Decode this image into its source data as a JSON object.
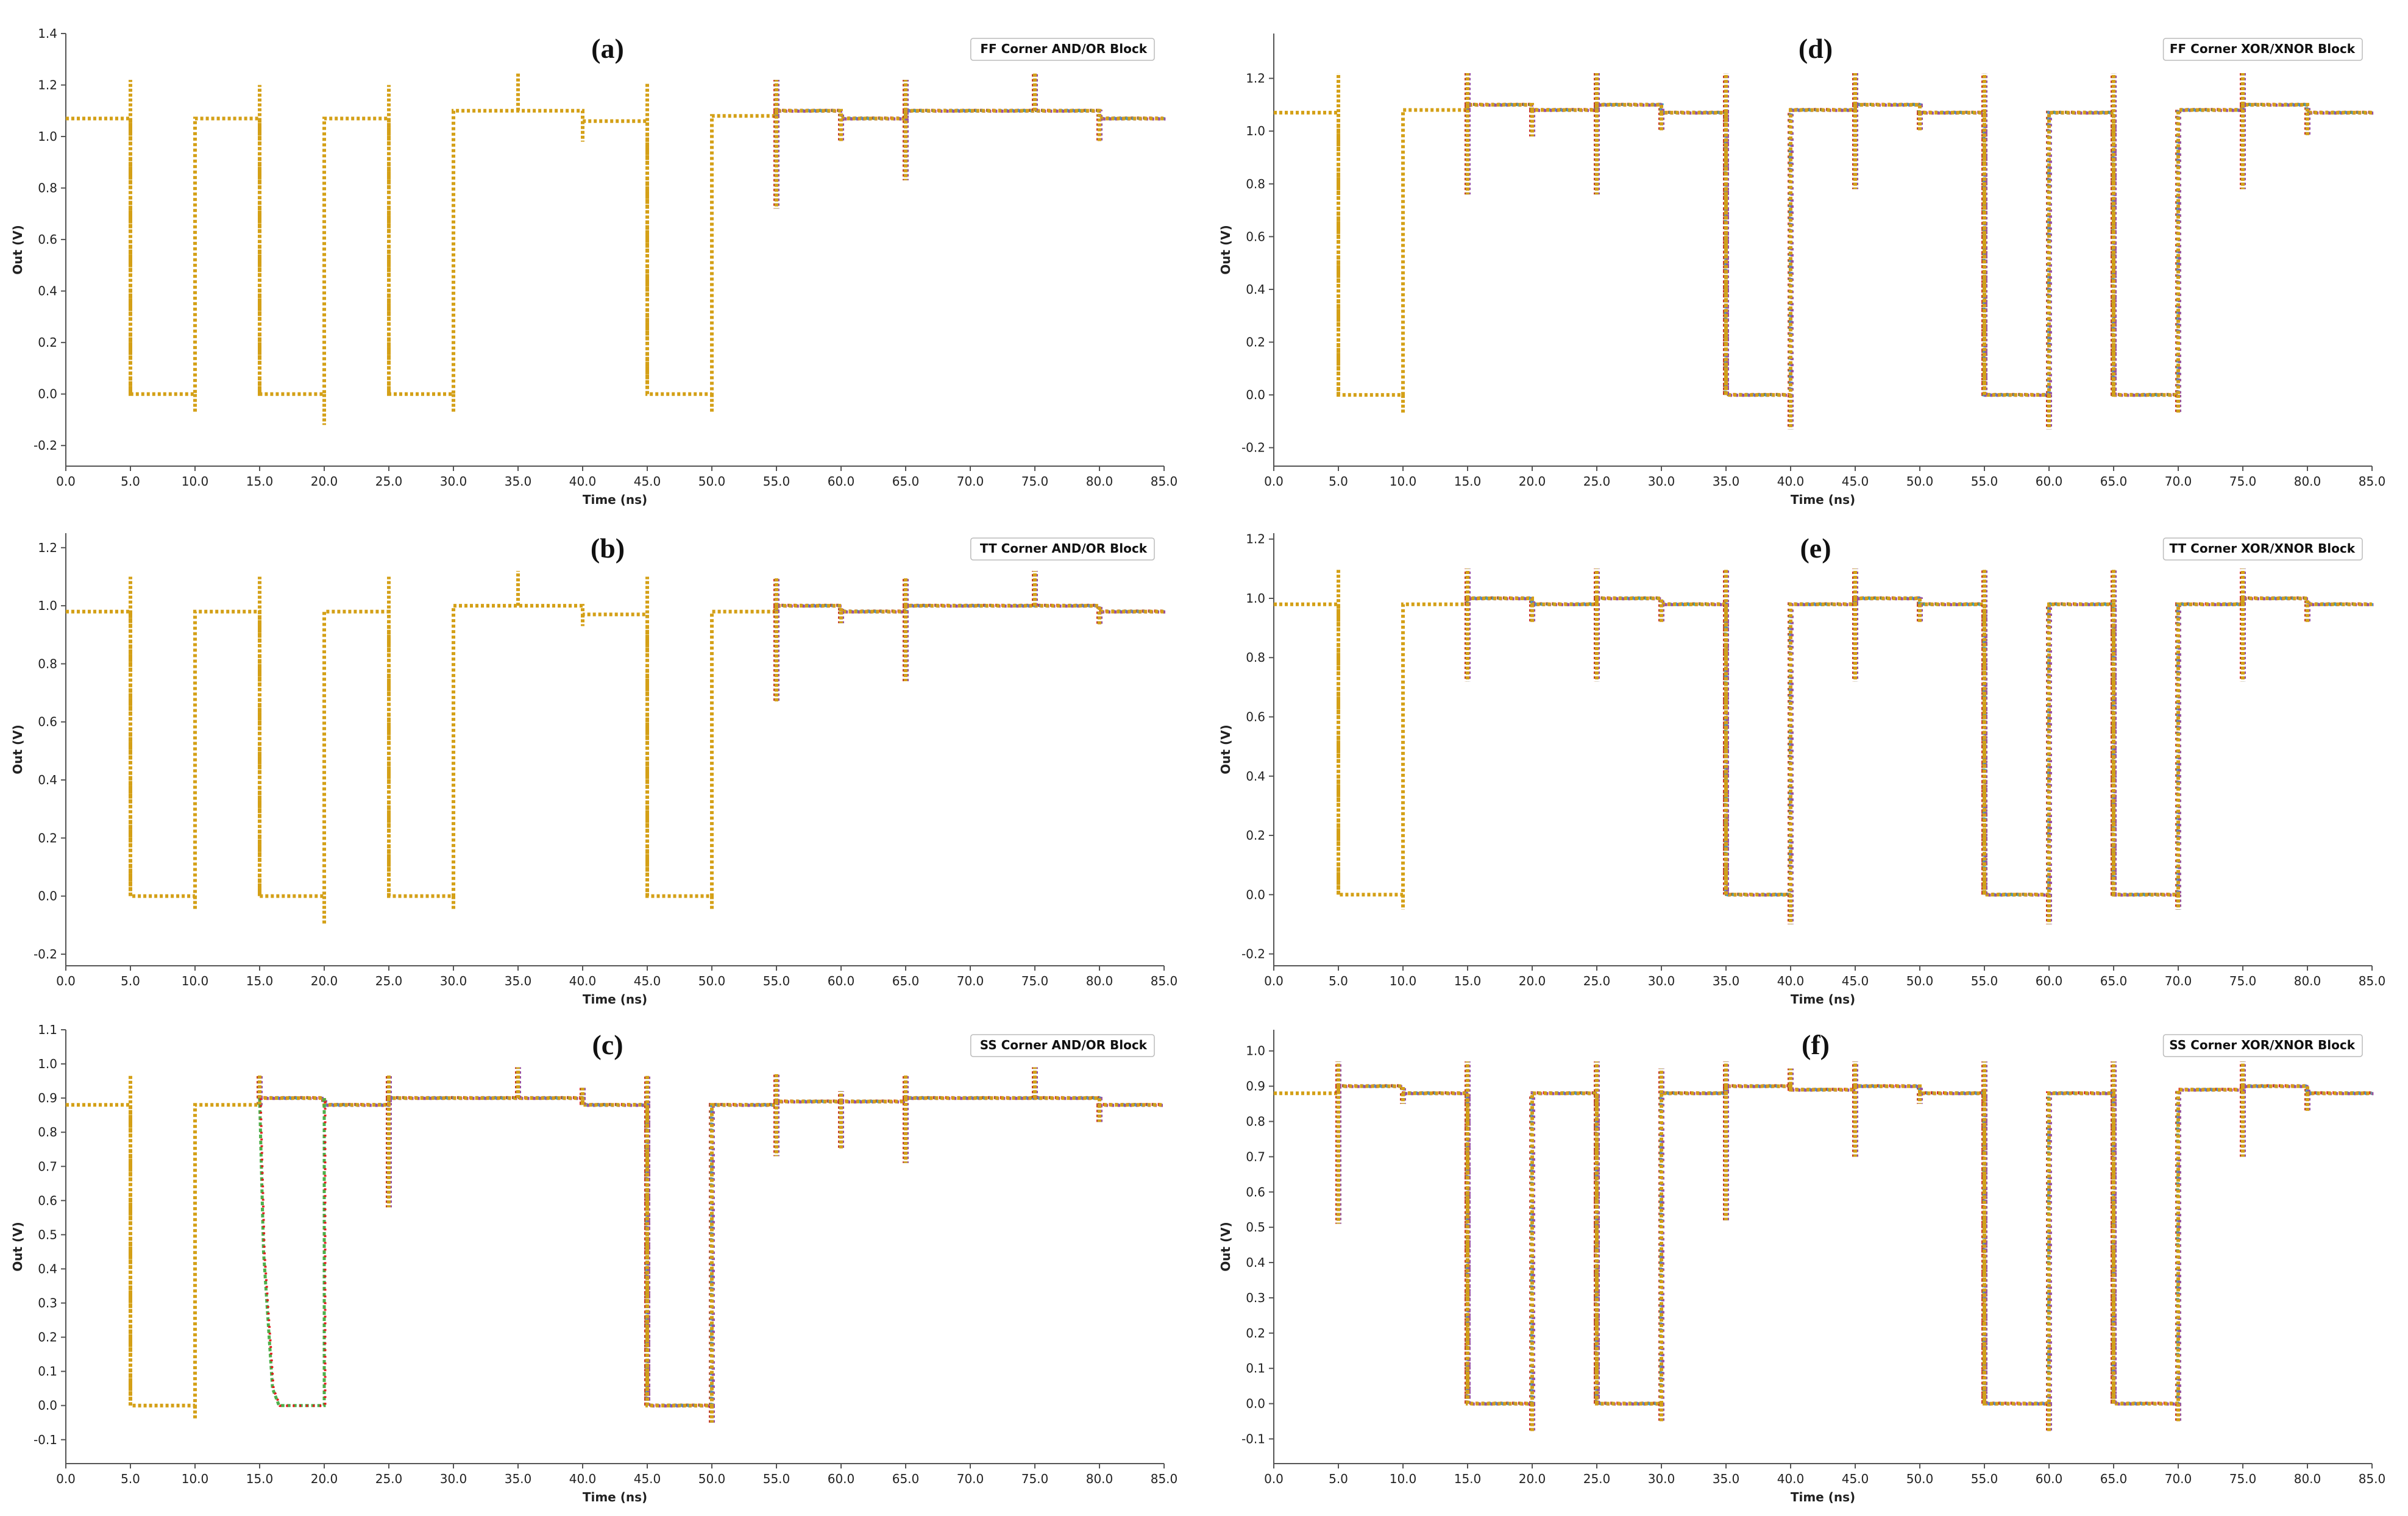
{
  "colors": {
    "axis": "#555555",
    "trace_primary": "#d4a017",
    "trace_accents": [
      "#e41a1c",
      "#4daf4a",
      "#9467bd",
      "#17becf",
      "#984ea3"
    ]
  },
  "chart_data": [
    {
      "id": "a",
      "type": "line",
      "panel_label": "(a)",
      "legend": "FF Corner AND/OR Block",
      "xlabel": "Time (ns)",
      "ylabel": "Out (V)",
      "xlim": [
        0,
        85
      ],
      "ylim": [
        -0.28,
        1.4
      ],
      "xticks": [
        "0.0",
        "5.0",
        "10.0",
        "15.0",
        "20.0",
        "25.0",
        "30.0",
        "35.0",
        "40.0",
        "45.0",
        "50.0",
        "55.0",
        "60.0",
        "65.0",
        "70.0",
        "75.0",
        "80.0",
        "85.0"
      ],
      "yticks": [
        "-0.2",
        "0.0",
        "0.2",
        "0.4",
        "0.6",
        "0.8",
        "1.0",
        "1.2",
        "1.4"
      ],
      "x": [
        0,
        5,
        5,
        10,
        10,
        15,
        15,
        20,
        20,
        25,
        25,
        30,
        30,
        35,
        35,
        40,
        40,
        45,
        45,
        50,
        50,
        55,
        55,
        60,
        60,
        65,
        65,
        70,
        70,
        75,
        75,
        80,
        80,
        85
      ],
      "y": [
        1.07,
        1.07,
        0,
        0,
        1.07,
        1.07,
        0,
        0,
        1.07,
        1.07,
        0,
        0,
        1.1,
        1.1,
        1.1,
        1.1,
        1.06,
        1.06,
        0,
        0,
        1.08,
        1.08,
        1.1,
        1.1,
        1.07,
        1.07,
        1.1,
        1.1,
        1.1,
        1.1,
        1.1,
        1.1,
        1.07,
        1.07
      ],
      "spikes": [
        [
          5,
          1.22
        ],
        [
          15,
          1.2
        ],
        [
          25,
          1.2
        ],
        [
          35,
          1.25
        ],
        [
          40,
          0.98
        ],
        [
          45,
          1.21
        ],
        [
          55,
          0.72
        ],
        [
          55,
          1.22
        ],
        [
          60,
          0.98
        ],
        [
          65,
          0.83
        ],
        [
          65,
          1.22
        ],
        [
          75,
          1.25
        ],
        [
          80,
          0.98
        ],
        [
          10,
          -0.07
        ],
        [
          20,
          -0.12
        ],
        [
          30,
          -0.07
        ],
        [
          50,
          -0.07
        ]
      ],
      "accent_start": 55
    },
    {
      "id": "b",
      "type": "line",
      "panel_label": "(b)",
      "legend": "TT Corner AND/OR Block",
      "xlabel": "Time (ns)",
      "ylabel": "Out (V)",
      "xlim": [
        0,
        85
      ],
      "ylim": [
        -0.24,
        1.25
      ],
      "xticks": [
        "0.0",
        "5.0",
        "10.0",
        "15.0",
        "20.0",
        "25.0",
        "30.0",
        "35.0",
        "40.0",
        "45.0",
        "50.0",
        "55.0",
        "60.0",
        "65.0",
        "70.0",
        "75.0",
        "80.0",
        "85.0"
      ],
      "yticks": [
        "-0.2",
        "0.0",
        "0.2",
        "0.4",
        "0.6",
        "0.8",
        "1.0",
        "1.2"
      ],
      "x": [
        0,
        5,
        5,
        10,
        10,
        15,
        15,
        20,
        20,
        25,
        25,
        30,
        30,
        35,
        35,
        40,
        40,
        45,
        45,
        50,
        50,
        55,
        55,
        60,
        60,
        65,
        65,
        70,
        70,
        75,
        75,
        80,
        80,
        85
      ],
      "y": [
        0.98,
        0.98,
        0,
        0,
        0.98,
        0.98,
        0,
        0,
        0.98,
        0.98,
        0,
        0,
        1.0,
        1.0,
        1.0,
        1.0,
        0.97,
        0.97,
        0,
        0,
        0.98,
        0.98,
        1.0,
        1.0,
        0.98,
        0.98,
        1.0,
        1.0,
        1.0,
        1.0,
        1.0,
        1.0,
        0.98,
        0.98
      ],
      "spikes": [
        [
          5,
          1.1
        ],
        [
          15,
          1.1
        ],
        [
          25,
          1.1
        ],
        [
          35,
          1.12
        ],
        [
          40,
          0.93
        ],
        [
          45,
          1.1
        ],
        [
          55,
          0.67
        ],
        [
          55,
          1.1
        ],
        [
          60,
          0.94
        ],
        [
          65,
          0.74
        ],
        [
          65,
          1.1
        ],
        [
          75,
          1.12
        ],
        [
          80,
          0.93
        ],
        [
          10,
          -0.05
        ],
        [
          20,
          -0.1
        ],
        [
          30,
          -0.05
        ],
        [
          50,
          -0.05
        ]
      ],
      "accent_start": 55
    },
    {
      "id": "c",
      "type": "line",
      "panel_label": "(c)",
      "legend": "SS Corner AND/OR Block",
      "xlabel": "Time (ns)",
      "ylabel": "Out (V)",
      "xlim": [
        0,
        85
      ],
      "ylim": [
        -0.17,
        1.1
      ],
      "xticks": [
        "0.0",
        "5.0",
        "10.0",
        "15.0",
        "20.0",
        "25.0",
        "30.0",
        "35.0",
        "40.0",
        "45.0",
        "50.0",
        "55.0",
        "60.0",
        "65.0",
        "70.0",
        "75.0",
        "80.0",
        "85.0"
      ],
      "yticks": [
        "-0.1",
        "0.0",
        "0.1",
        "0.2",
        "0.3",
        "0.4",
        "0.5",
        "0.6",
        "0.7",
        "0.8",
        "0.9",
        "1.0",
        "1.1"
      ],
      "x": [
        0,
        5,
        5,
        10,
        10,
        15,
        15,
        20,
        20,
        25,
        25,
        30,
        30,
        35,
        35,
        40,
        40,
        45,
        45,
        50,
        50,
        55,
        55,
        60,
        60,
        65,
        65,
        70,
        70,
        75,
        75,
        80,
        80,
        85
      ],
      "y": [
        0.88,
        0.88,
        0,
        0,
        0.88,
        0.88,
        0.9,
        0.9,
        0.88,
        0.88,
        0.9,
        0.9,
        0.9,
        0.9,
        0.9,
        0.9,
        0.88,
        0.88,
        0,
        0,
        0.88,
        0.88,
        0.89,
        0.89,
        0.89,
        0.89,
        0.9,
        0.9,
        0.9,
        0.9,
        0.9,
        0.9,
        0.88,
        0.88
      ],
      "spikes": [
        [
          5,
          0.97
        ],
        [
          15,
          0.97
        ],
        [
          25,
          0.97
        ],
        [
          25,
          0.58
        ],
        [
          35,
          0.99
        ],
        [
          40,
          0.93
        ],
        [
          45,
          0.97
        ],
        [
          55,
          0.97
        ],
        [
          55,
          0.73
        ],
        [
          60,
          0.92
        ],
        [
          60,
          0.75
        ],
        [
          65,
          0.97
        ],
        [
          65,
          0.71
        ],
        [
          75,
          0.99
        ],
        [
          80,
          0.83
        ],
        [
          10,
          -0.04
        ],
        [
          50,
          -0.05
        ]
      ],
      "fall_series": [
        [
          15,
          0.9
        ],
        [
          15.3,
          0.45
        ],
        [
          16,
          0.05
        ],
        [
          16.5,
          0
        ],
        [
          20,
          0
        ],
        [
          20,
          0.9
        ]
      ],
      "accent_start": 15
    },
    {
      "id": "d",
      "type": "line",
      "panel_label": "(d)",
      "legend": "FF Corner XOR/XNOR Block",
      "xlabel": "Time (ns)",
      "ylabel": "Out (V)",
      "xlim": [
        0,
        85
      ],
      "ylim": [
        -0.27,
        1.37
      ],
      "xticks": [
        "0.0",
        "5.0",
        "10.0",
        "15.0",
        "20.0",
        "25.0",
        "30.0",
        "35.0",
        "40.0",
        "45.0",
        "50.0",
        "55.0",
        "60.0",
        "65.0",
        "70.0",
        "75.0",
        "80.0",
        "85.0"
      ],
      "yticks": [
        "-0.2",
        "0.0",
        "0.2",
        "0.4",
        "0.6",
        "0.8",
        "1.0",
        "1.2"
      ],
      "x": [
        0,
        5,
        5,
        10,
        10,
        15,
        15,
        20,
        20,
        25,
        25,
        30,
        30,
        35,
        35,
        40,
        40,
        45,
        45,
        50,
        50,
        55,
        55,
        60,
        60,
        65,
        65,
        70,
        70,
        75,
        75,
        80,
        80,
        85
      ],
      "y": [
        1.07,
        1.07,
        0,
        0,
        1.08,
        1.08,
        1.1,
        1.1,
        1.08,
        1.08,
        1.1,
        1.1,
        1.07,
        1.07,
        0,
        0,
        1.08,
        1.08,
        1.1,
        1.1,
        1.07,
        1.07,
        0,
        0,
        1.07,
        1.07,
        0,
        0,
        1.08,
        1.08,
        1.1,
        1.1,
        1.07,
        1.07
      ],
      "spikes": [
        [
          5,
          1.22
        ],
        [
          15,
          1.22
        ],
        [
          15,
          0.76
        ],
        [
          20,
          0.98
        ],
        [
          25,
          1.22
        ],
        [
          25,
          0.76
        ],
        [
          30,
          1.0
        ],
        [
          35,
          1.22
        ],
        [
          45,
          1.22
        ],
        [
          45,
          0.78
        ],
        [
          50,
          1.0
        ],
        [
          55,
          1.22
        ],
        [
          65,
          1.22
        ],
        [
          75,
          1.22
        ],
        [
          75,
          0.78
        ],
        [
          80,
          0.98
        ],
        [
          10,
          -0.07
        ],
        [
          40,
          -0.13
        ],
        [
          60,
          -0.13
        ],
        [
          70,
          -0.07
        ]
      ],
      "accent_start": 15
    },
    {
      "id": "e",
      "type": "line",
      "panel_label": "(e)",
      "legend": "TT Corner XOR/XNOR Block",
      "xlabel": "Time (ns)",
      "ylabel": "Out (V)",
      "xlim": [
        0,
        85
      ],
      "ylim": [
        -0.24,
        1.22
      ],
      "xticks": [
        "0.0",
        "5.0",
        "10.0",
        "15.0",
        "20.0",
        "25.0",
        "30.0",
        "35.0",
        "40.0",
        "45.0",
        "50.0",
        "55.0",
        "60.0",
        "65.0",
        "70.0",
        "75.0",
        "80.0",
        "85.0"
      ],
      "yticks": [
        "-0.2",
        "0.0",
        "0.2",
        "0.4",
        "0.6",
        "0.8",
        "1.0",
        "1.2"
      ],
      "x": [
        0,
        5,
        5,
        10,
        10,
        15,
        15,
        20,
        20,
        25,
        25,
        30,
        30,
        35,
        35,
        40,
        40,
        45,
        45,
        50,
        50,
        55,
        55,
        60,
        60,
        65,
        65,
        70,
        70,
        75,
        75,
        80,
        80,
        85
      ],
      "y": [
        0.98,
        0.98,
        0,
        0,
        0.98,
        0.98,
        1.0,
        1.0,
        0.98,
        0.98,
        1.0,
        1.0,
        0.98,
        0.98,
        0,
        0,
        0.98,
        0.98,
        1.0,
        1.0,
        0.98,
        0.98,
        0,
        0,
        0.98,
        0.98,
        0,
        0,
        0.98,
        0.98,
        1.0,
        1.0,
        0.98,
        0.98
      ],
      "spikes": [
        [
          5,
          1.1
        ],
        [
          15,
          1.1
        ],
        [
          15,
          0.72
        ],
        [
          20,
          0.92
        ],
        [
          25,
          1.1
        ],
        [
          25,
          0.72
        ],
        [
          30,
          0.92
        ],
        [
          35,
          1.1
        ],
        [
          45,
          1.1
        ],
        [
          45,
          0.72
        ],
        [
          50,
          0.92
        ],
        [
          55,
          1.1
        ],
        [
          65,
          1.1
        ],
        [
          75,
          1.1
        ],
        [
          75,
          0.72
        ],
        [
          80,
          0.92
        ],
        [
          10,
          -0.05
        ],
        [
          40,
          -0.1
        ],
        [
          60,
          -0.1
        ],
        [
          70,
          -0.05
        ]
      ],
      "accent_start": 15
    },
    {
      "id": "f",
      "type": "line",
      "panel_label": "(f)",
      "legend": "SS Corner XOR/XNOR Block",
      "xlabel": "Time (ns)",
      "ylabel": "Out (V)",
      "xlim": [
        0,
        85
      ],
      "ylim": [
        -0.17,
        1.06
      ],
      "xticks": [
        "0.0",
        "5.0",
        "10.0",
        "15.0",
        "20.0",
        "25.0",
        "30.0",
        "35.0",
        "40.0",
        "45.0",
        "50.0",
        "55.0",
        "60.0",
        "65.0",
        "70.0",
        "75.0",
        "80.0",
        "85.0"
      ],
      "yticks": [
        "-0.1",
        "0.0",
        "0.1",
        "0.2",
        "0.3",
        "0.4",
        "0.5",
        "0.6",
        "0.7",
        "0.8",
        "0.9",
        "1.0"
      ],
      "x": [
        0,
        5,
        5,
        10,
        10,
        15,
        15,
        20,
        20,
        25,
        25,
        30,
        30,
        35,
        35,
        40,
        40,
        45,
        45,
        50,
        50,
        55,
        55,
        60,
        60,
        65,
        65,
        70,
        70,
        75,
        75,
        80,
        80,
        85
      ],
      "y": [
        0.88,
        0.88,
        0.9,
        0.9,
        0.88,
        0.88,
        0,
        0,
        0.88,
        0.88,
        0,
        0,
        0.88,
        0.88,
        0.9,
        0.9,
        0.89,
        0.89,
        0.9,
        0.9,
        0.88,
        0.88,
        0,
        0,
        0.88,
        0.88,
        0,
        0,
        0.89,
        0.89,
        0.9,
        0.9,
        0.88,
        0.88
      ],
      "spikes": [
        [
          5,
          0.97
        ],
        [
          5,
          0.51
        ],
        [
          10,
          0.85
        ],
        [
          15,
          0.97
        ],
        [
          25,
          0.97
        ],
        [
          30,
          0.95
        ],
        [
          35,
          0.97
        ],
        [
          35,
          0.52
        ],
        [
          40,
          0.95
        ],
        [
          45,
          0.97
        ],
        [
          45,
          0.7
        ],
        [
          50,
          0.85
        ],
        [
          55,
          0.97
        ],
        [
          65,
          0.97
        ],
        [
          75,
          0.97
        ],
        [
          75,
          0.7
        ],
        [
          80,
          0.83
        ],
        [
          20,
          -0.08
        ],
        [
          30,
          -0.05
        ],
        [
          60,
          -0.08
        ],
        [
          70,
          -0.05
        ]
      ],
      "accent_start": 5
    }
  ]
}
